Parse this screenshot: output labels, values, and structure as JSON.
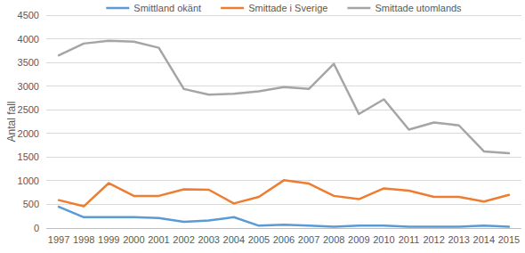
{
  "chart_data": {
    "type": "line",
    "y_label": "Antal fall",
    "categories": [
      "1997",
      "1998",
      "1999",
      "2000",
      "2001",
      "2002",
      "2003",
      "2004",
      "2005",
      "2006",
      "2007",
      "2008",
      "2009",
      "2010",
      "2011",
      "2012",
      "2013",
      "2014",
      "2015"
    ],
    "series": [
      {
        "name": "Smittland okänt",
        "color": "#5b9bd5",
        "values": [
          450,
          230,
          230,
          230,
          210,
          130,
          160,
          230,
          50,
          70,
          50,
          30,
          50,
          50,
          30,
          30,
          30,
          50,
          30
        ]
      },
      {
        "name": "Smittade i Sverige",
        "color": "#ed7d31",
        "values": [
          590,
          460,
          950,
          680,
          680,
          820,
          810,
          520,
          660,
          1010,
          940,
          680,
          610,
          840,
          790,
          660,
          660,
          560,
          700
        ]
      },
      {
        "name": "Smittade utomlands",
        "color": "#a5a5a5",
        "values": [
          3650,
          3900,
          3960,
          3940,
          3810,
          2940,
          2820,
          2840,
          2890,
          2980,
          2940,
          3470,
          2410,
          2720,
          2080,
          2230,
          2170,
          1620,
          1580
        ]
      }
    ],
    "ylim": [
      0,
      4500
    ],
    "yticks": [
      0,
      500,
      1000,
      1500,
      2000,
      2500,
      3000,
      3500,
      4000,
      4500
    ],
    "grid": true,
    "legend": "top"
  }
}
